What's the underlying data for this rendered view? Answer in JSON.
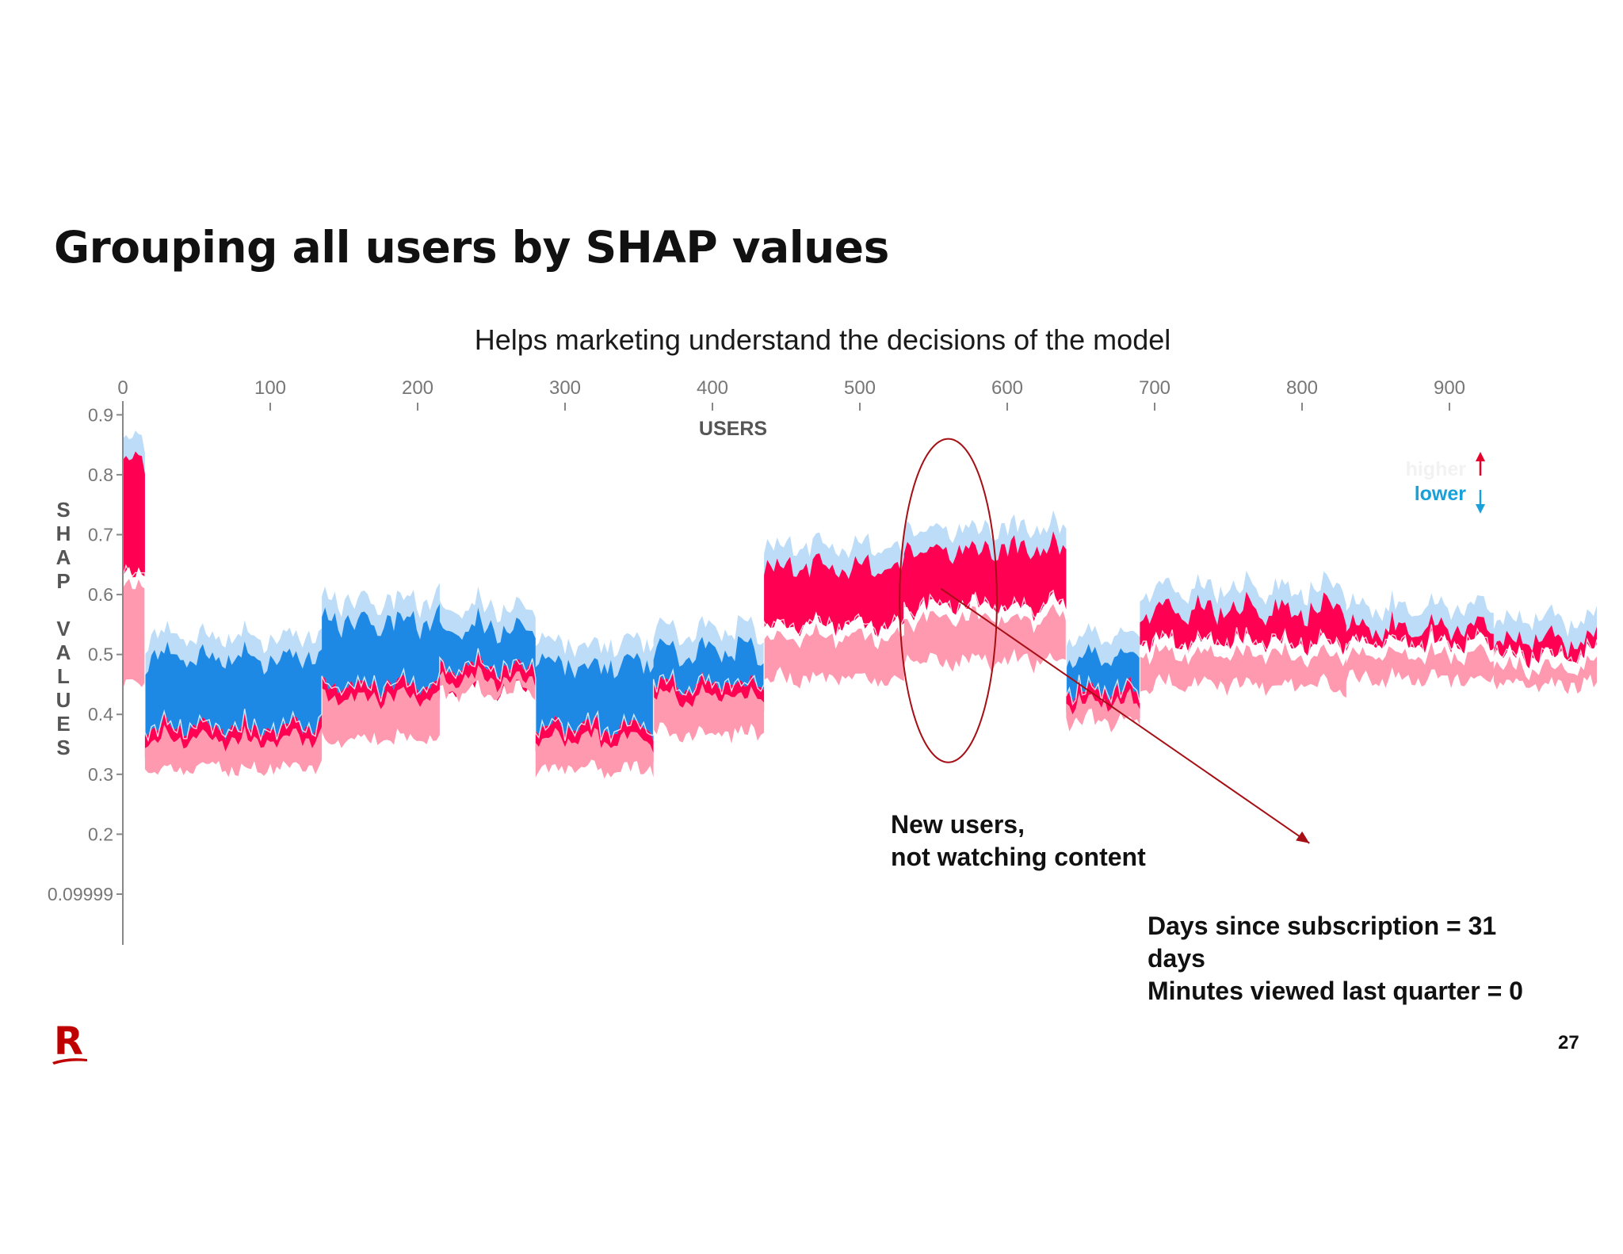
{
  "slide": {
    "title": "Grouping all users by SHAP values",
    "subtitle": "Helps marketing understand the decisions of the model",
    "page_number": "27"
  },
  "annotations": [
    {
      "id": "new-users",
      "text": "New users,\nnot watching content"
    },
    {
      "id": "details",
      "text": "Days since subscription = 31\ndays\nMinutes viewed last quarter = 0"
    }
  ],
  "colors": {
    "higher": "#ff0052",
    "higher_light": "#ff99b0",
    "lower": "#1e88e5",
    "lower_light": "#bcdcf7",
    "annotation": "#a50f15",
    "axis_text": "#777777"
  },
  "chart_data": {
    "type": "area",
    "x_axis_label": "USERS",
    "y_axis_label": "SHAP VALUES",
    "x_ticks": [
      0,
      100,
      200,
      300,
      400,
      500,
      600,
      700,
      800,
      900
    ],
    "y_ticks": [
      {
        "value": 0.9,
        "label": "0.9"
      },
      {
        "value": 0.8,
        "label": "0.8"
      },
      {
        "value": 0.7,
        "label": "0.7"
      },
      {
        "value": 0.6,
        "label": "0.6"
      },
      {
        "value": 0.5,
        "label": "0.5"
      },
      {
        "value": 0.4,
        "label": "0.4"
      },
      {
        "value": 0.3,
        "label": "0.3"
      },
      {
        "value": 0.2,
        "label": "0.2"
      },
      {
        "value": 0.09999,
        "label": "0.09999"
      }
    ],
    "xlim": [
      0,
      1000
    ],
    "ylim": [
      0.055,
      0.915
    ],
    "legend": {
      "higher_label": "higher",
      "lower_label": "lower",
      "position": "top-right"
    },
    "segments": [
      {
        "x": [
          0,
          15
        ],
        "top": 0.86,
        "output": 0.63,
        "base": 0.45,
        "dominant": "higher"
      },
      {
        "x": [
          15,
          135
        ],
        "top": 0.53,
        "output": 0.38,
        "base": 0.31,
        "dominant": "lower"
      },
      {
        "x": [
          135,
          215
        ],
        "top": 0.59,
        "output": 0.45,
        "base": 0.36,
        "dominant": "lower"
      },
      {
        "x": [
          215,
          280
        ],
        "top": 0.58,
        "output": 0.48,
        "base": 0.44,
        "dominant": "lower"
      },
      {
        "x": [
          280,
          360
        ],
        "top": 0.52,
        "output": 0.38,
        "base": 0.31,
        "dominant": "lower"
      },
      {
        "x": [
          360,
          435
        ],
        "top": 0.54,
        "output": 0.45,
        "base": 0.37,
        "dominant": "lower"
      },
      {
        "x": [
          435,
          530
        ],
        "top": 0.68,
        "output": 0.55,
        "base": 0.46,
        "dominant": "higher"
      },
      {
        "x": [
          530,
          640
        ],
        "top": 0.71,
        "output": 0.58,
        "base": 0.49,
        "dominant": "higher"
      },
      {
        "x": [
          640,
          690
        ],
        "top": 0.53,
        "output": 0.44,
        "base": 0.39,
        "dominant": "lower"
      },
      {
        "x": [
          690,
          830
        ],
        "top": 0.61,
        "output": 0.52,
        "base": 0.45,
        "dominant": "higher"
      },
      {
        "x": [
          830,
          930
        ],
        "top": 0.58,
        "output": 0.52,
        "base": 0.46,
        "dominant": "higher"
      },
      {
        "x": [
          930,
          1000
        ],
        "top": 0.56,
        "output": 0.5,
        "base": 0.45,
        "dominant": "higher"
      }
    ],
    "highlight": {
      "shape": "ellipse",
      "x_center": 560,
      "y_center": 0.59,
      "x_radius": 33,
      "y_radius": 0.27
    },
    "arrow": {
      "from_x": 555,
      "from_y": 0.61,
      "to_x": 805,
      "to_y": 0.185
    }
  }
}
